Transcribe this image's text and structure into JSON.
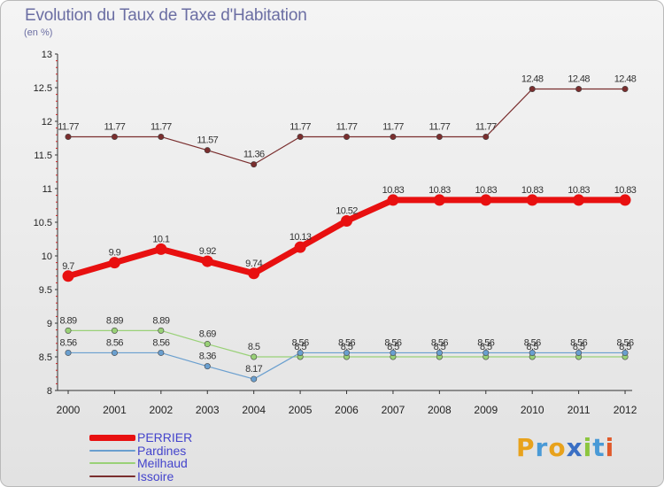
{
  "title": "Evolution du Taux de Taxe d'Habitation",
  "subtitle": "(en %)",
  "logo": {
    "text": "Proxiti",
    "letters": [
      {
        "ch": "P",
        "color": "#e8a21c"
      },
      {
        "ch": "r",
        "color": "#4a9ad6"
      },
      {
        "ch": "o",
        "color": "#e8a21c"
      },
      {
        "ch": "x",
        "color": "#3a6fc4"
      },
      {
        "ch": "i",
        "color": "#8cc63f"
      },
      {
        "ch": "t",
        "color": "#4a9ad6"
      },
      {
        "ch": "i",
        "color": "#e05a2b"
      }
    ]
  },
  "chart_data": {
    "type": "line",
    "title": "Evolution du Taux de Taxe d'Habitation",
    "ylabel": "(en %)",
    "xlabel": "",
    "x": [
      "2000",
      "2001",
      "2002",
      "2003",
      "2004",
      "2005",
      "2006",
      "2007",
      "2008",
      "2009",
      "2010",
      "2011",
      "2012"
    ],
    "ylim": [
      8,
      13
    ],
    "yticks": [
      8,
      8.5,
      9,
      9.5,
      10,
      10.5,
      11,
      11.5,
      12,
      12.5,
      13
    ],
    "ytick_labels": [
      "8",
      "8.5",
      "9",
      "9.5",
      "10",
      "10.5",
      "11",
      "11.5",
      "12",
      "12.5",
      "13"
    ],
    "grid": false,
    "legend_position": "bottom-left",
    "series": [
      {
        "name": "Issoire",
        "color": "#7a2e2e",
        "width": 1.2,
        "marker": 3.2,
        "values": [
          11.77,
          11.77,
          11.77,
          11.57,
          11.36,
          11.77,
          11.77,
          11.77,
          11.77,
          11.77,
          12.48,
          12.48,
          12.48
        ],
        "labels": [
          "11.77",
          "11.77",
          "11.77",
          "11.57",
          "11.36",
          "11.77",
          "11.77",
          "11.77",
          "11.77",
          "11.77",
          "12.48",
          "12.48",
          "12.48"
        ]
      },
      {
        "name": "Meilhaud",
        "color": "#99d177",
        "width": 1.2,
        "marker": 3.2,
        "values": [
          8.89,
          8.89,
          8.89,
          8.69,
          8.5,
          8.5,
          8.5,
          8.5,
          8.5,
          8.5,
          8.5,
          8.5,
          8.5
        ],
        "labels": [
          "8.89",
          "8.89",
          "8.89",
          "8.69",
          "8.5",
          "8.5",
          "8.5",
          "8.5",
          "8.5",
          "8.5",
          "8.5",
          "8.5",
          "8.5"
        ]
      },
      {
        "name": "Pardines",
        "color": "#6a9fcf",
        "width": 1.2,
        "marker": 3.2,
        "values": [
          8.56,
          8.56,
          8.56,
          8.36,
          8.17,
          8.56,
          8.56,
          8.56,
          8.56,
          8.56,
          8.56,
          8.56,
          8.56
        ],
        "labels": [
          "8.56",
          "8.56",
          "8.56",
          "8.36",
          "8.17",
          "8.56",
          "8.56",
          "8.56",
          "8.56",
          "8.56",
          "8.56",
          "8.56",
          "8.56"
        ]
      },
      {
        "name": "PERRIER",
        "color": "#e81010",
        "width": 7,
        "marker": 6.5,
        "values": [
          9.7,
          9.9,
          10.1,
          9.92,
          9.74,
          10.13,
          10.52,
          10.83,
          10.83,
          10.83,
          10.83,
          10.83,
          10.83
        ],
        "labels": [
          "9.7",
          "9.9",
          "10.1",
          "9.92",
          "9.74",
          "10.13",
          "10.52",
          "10.83",
          "10.83",
          "10.83",
          "10.83",
          "10.83",
          "10.83"
        ]
      }
    ],
    "legend": [
      {
        "name": "PERRIER",
        "color": "#e81010",
        "thickness": 7
      },
      {
        "name": "Pardines",
        "color": "#6a9fcf",
        "thickness": 2
      },
      {
        "name": "Meilhaud",
        "color": "#99d177",
        "thickness": 2
      },
      {
        "name": "Issoire",
        "color": "#7a2e2e",
        "thickness": 2
      }
    ]
  }
}
